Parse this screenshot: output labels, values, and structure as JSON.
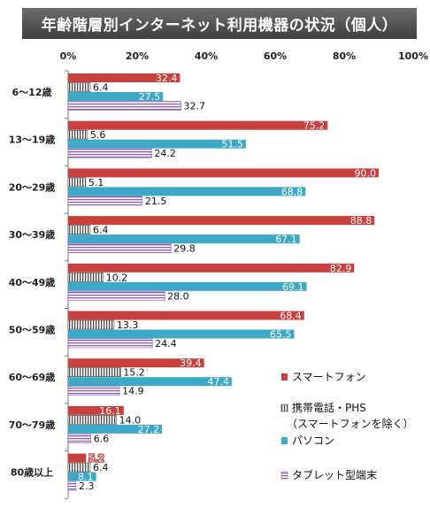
{
  "chart_data": {
    "type": "bar",
    "orientation": "horizontal",
    "title": "年齢階層別インターネット利用機器の状況（個人）",
    "categories": [
      "6～12歳",
      "13～19歳",
      "20～29歳",
      "30～39歳",
      "40～49歳",
      "50～59歳",
      "60～69歳",
      "70～79歳",
      "80歳以上"
    ],
    "series": [
      {
        "name": "スマートフォン",
        "values": [
          32.4,
          75.2,
          90.0,
          88.8,
          82.9,
          68.4,
          39.4,
          16.1,
          5.2
        ]
      },
      {
        "name": "携帯電話・PHS\n（スマートフォンを除く）",
        "values": [
          6.4,
          5.6,
          5.1,
          6.4,
          10.2,
          13.3,
          15.2,
          14.0,
          6.4
        ]
      },
      {
        "name": "パソコン",
        "values": [
          27.5,
          51.5,
          68.8,
          67.1,
          69.1,
          65.5,
          47.4,
          27.2,
          8.1
        ]
      },
      {
        "name": "タブレット型端末",
        "values": [
          32.7,
          24.2,
          21.5,
          29.8,
          28.0,
          24.4,
          14.9,
          6.6,
          2.3
        ]
      }
    ],
    "value_labels": [
      [
        "32.4",
        "75.2",
        "90.0",
        "88.8",
        "82.9",
        "68.4",
        "39.4",
        "16.1",
        "5.2"
      ],
      [
        "6.4",
        "5.6",
        "5.1",
        "6.4",
        "10.2",
        "13.3",
        "15.2",
        "14.0",
        "6.4"
      ],
      [
        "27.5",
        "51.5",
        "68.8",
        "67.1",
        "69.1",
        "65.5",
        "47.4",
        "27.2",
        "8.1"
      ],
      [
        "32.7",
        "24.2",
        "21.5",
        "29.8",
        "28.0",
        "24.4",
        "14.9",
        "6.6",
        "2.3"
      ]
    ],
    "series_colors": [
      "#c8413f",
      "#4a4a4a",
      "#3ea8c8",
      "#8e5ab4"
    ],
    "series_patterns": [
      "solid",
      "vertical-stripes",
      "solid",
      "horizontal-stripes"
    ],
    "x_ticks": [
      "0%",
      "20%",
      "40%",
      "60%",
      "80%",
      "100%"
    ],
    "xlim": [
      0,
      100
    ],
    "grid": false,
    "legend_position": "bottom-right"
  }
}
